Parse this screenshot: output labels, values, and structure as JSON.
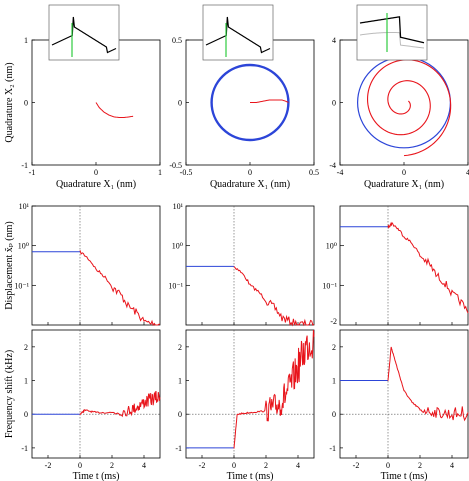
{
  "chart_data": [
    {
      "type": "line",
      "row": "quadrature",
      "column": 1,
      "xlabel": "Quadrature X₁ (nm)",
      "ylabel": "Quadrature X₂ (nm)",
      "xlim": [
        -1,
        1
      ],
      "ylim": [
        -1,
        1
      ],
      "xticks": [
        "-1",
        "0",
        "1"
      ],
      "yticks": [
        "-1",
        "0",
        "1"
      ],
      "series": [
        {
          "color": "#e8141b",
          "x": [
            0.0,
            0.05,
            0.12,
            0.2,
            0.28,
            0.36,
            0.44,
            0.52,
            0.58
          ],
          "y": [
            0.0,
            -0.08,
            -0.15,
            -0.2,
            -0.23,
            -0.24,
            -0.24,
            -0.23,
            -0.22
          ]
        }
      ],
      "inset": {
        "shape": "single-peak",
        "marker_color": "#2ecc40"
      }
    },
    {
      "type": "line",
      "row": "quadrature",
      "column": 2,
      "xlabel": "Quadrature X₁ (nm)",
      "xlim": [
        -0.5,
        0.5
      ],
      "ylim": [
        -0.5,
        0.5
      ],
      "xticks": [
        "-0.5",
        "0",
        "0.5"
      ],
      "yticks": [
        "-0.5",
        "0",
        "0.5"
      ],
      "series": [
        {
          "color": "#2c45d8",
          "shape": "circle",
          "center": [
            0.0,
            0.0
          ],
          "radius": 0.3
        },
        {
          "color": "#e8141b",
          "x": [
            0.0,
            0.05,
            0.1,
            0.15,
            0.2,
            0.25,
            0.28,
            0.3
          ],
          "y": [
            0.0,
            0.0,
            0.01,
            0.02,
            0.02,
            0.02,
            0.01,
            0.0
          ]
        }
      ],
      "inset": {
        "shape": "single-peak",
        "marker_color": "#2ecc40"
      }
    },
    {
      "type": "line",
      "row": "quadrature",
      "column": 3,
      "xlabel": "Quadrature X₁ (nm)",
      "xlim": [
        -4,
        4
      ],
      "ylim": [
        -4,
        4
      ],
      "xticks": [
        "-4",
        "0",
        "4"
      ],
      "yticks": [
        "-4",
        "0",
        "4"
      ],
      "series": [
        {
          "color": "#2c45d8",
          "shape": "circle",
          "center": [
            0.0,
            0.0
          ],
          "radius": 2.9
        },
        {
          "color": "#e8141b",
          "shape": "spiral",
          "r_start": 3.4,
          "r_end": 0.3
        }
      ],
      "inset": {
        "shape": "plateau",
        "marker_color": "#2ecc40"
      }
    },
    {
      "type": "line",
      "row": "displacement",
      "column": 1,
      "ylabel": "Displacement x̃ₚ (nm)",
      "xlim": [
        -3,
        5
      ],
      "ylog": true,
      "yticks": [
        "10¹",
        "10⁰",
        "10⁻¹"
      ],
      "series": [
        {
          "color": "#2c45d8",
          "x": [
            -3,
            0
          ],
          "y": [
            0.7,
            0.7
          ]
        },
        {
          "color": "#e8141b",
          "x": [
            0,
            1,
            2,
            3,
            4,
            5
          ],
          "y": [
            0.7,
            0.25,
            0.09,
            0.03,
            0.012,
            0.01
          ]
        }
      ]
    },
    {
      "type": "line",
      "row": "displacement",
      "column": 2,
      "xlim": [
        -3,
        5
      ],
      "ylog": true,
      "yticks": [
        "10¹",
        "10⁰",
        "10⁻¹"
      ],
      "series": [
        {
          "color": "#2c45d8",
          "x": [
            -3,
            0
          ],
          "y": [
            0.3,
            0.3
          ]
        },
        {
          "color": "#e8141b",
          "x": [
            0,
            1,
            2,
            3,
            4,
            5
          ],
          "y": [
            0.3,
            0.1,
            0.04,
            0.015,
            0.01,
            0.01
          ]
        }
      ]
    },
    {
      "type": "line",
      "row": "displacement",
      "column": 3,
      "xlim": [
        -3,
        5
      ],
      "ylog": true,
      "yticks": [
        "10⁰",
        "10⁻¹"
      ],
      "extra_tick": "-2",
      "series": [
        {
          "color": "#2c45d8",
          "x": [
            -3,
            0
          ],
          "y": [
            3.0,
            3.0
          ]
        },
        {
          "color": "#e8141b",
          "x": [
            0,
            0.25,
            1,
            2,
            3,
            4,
            5
          ],
          "y": [
            3.0,
            3.6,
            1.7,
            0.55,
            0.18,
            0.06,
            0.02
          ]
        }
      ]
    },
    {
      "type": "line",
      "row": "frequency",
      "column": 1,
      "xlabel": "Time t (ms)",
      "ylabel": "Frequency shift (kHz)",
      "xlim": [
        -3,
        5
      ],
      "ylim": [
        -1.3,
        2.5
      ],
      "xticks": [
        "-2",
        "0",
        "2",
        "4"
      ],
      "yticks": [
        "2",
        "1",
        "0",
        "-1"
      ],
      "series": [
        {
          "color": "#2c45d8",
          "x": [
            -3,
            0
          ],
          "y": [
            0.0,
            0.0
          ]
        },
        {
          "color": "#e8141b",
          "x": [
            0,
            0.3,
            1,
            2,
            3,
            3.5,
            4,
            4.5,
            5
          ],
          "y": [
            0.0,
            0.12,
            0.05,
            0.05,
            0.1,
            0.2,
            0.35,
            0.45,
            0.5
          ]
        }
      ]
    },
    {
      "type": "line",
      "row": "frequency",
      "column": 2,
      "xlabel": "Time t (ms)",
      "xlim": [
        -3,
        5
      ],
      "ylim": [
        -1.3,
        2.5
      ],
      "xticks": [
        "-2",
        "0",
        "2",
        "4"
      ],
      "yticks": [
        "2",
        "1",
        "0",
        "-1"
      ],
      "series": [
        {
          "color": "#2c45d8",
          "x": [
            -3,
            0
          ],
          "y": [
            -1.0,
            -1.0
          ]
        },
        {
          "color": "#e8141b",
          "x": [
            0,
            0.2,
            1,
            2,
            2.5,
            3,
            3.5,
            4,
            4.5,
            5
          ],
          "y": [
            -1.0,
            0.0,
            0.05,
            0.1,
            0.2,
            0.4,
            0.8,
            1.4,
            2.0,
            2.3
          ]
        }
      ]
    },
    {
      "type": "line",
      "row": "frequency",
      "column": 3,
      "xlabel": "Time t (ms)",
      "xlim": [
        -3,
        5
      ],
      "ylim": [
        -1.3,
        2.5
      ],
      "xticks": [
        "-2",
        "0",
        "2",
        "4"
      ],
      "yticks": [
        "2",
        "1",
        "0",
        "-1"
      ],
      "series": [
        {
          "color": "#2c45d8",
          "x": [
            -3,
            0
          ],
          "y": [
            1.0,
            1.0
          ]
        },
        {
          "color": "#e8141b",
          "x": [
            0,
            0.2,
            0.5,
            1,
            1.5,
            2,
            3,
            4,
            5
          ],
          "y": [
            1.0,
            2.0,
            1.5,
            0.7,
            0.35,
            0.15,
            0.05,
            0.0,
            0.05
          ]
        }
      ]
    }
  ]
}
